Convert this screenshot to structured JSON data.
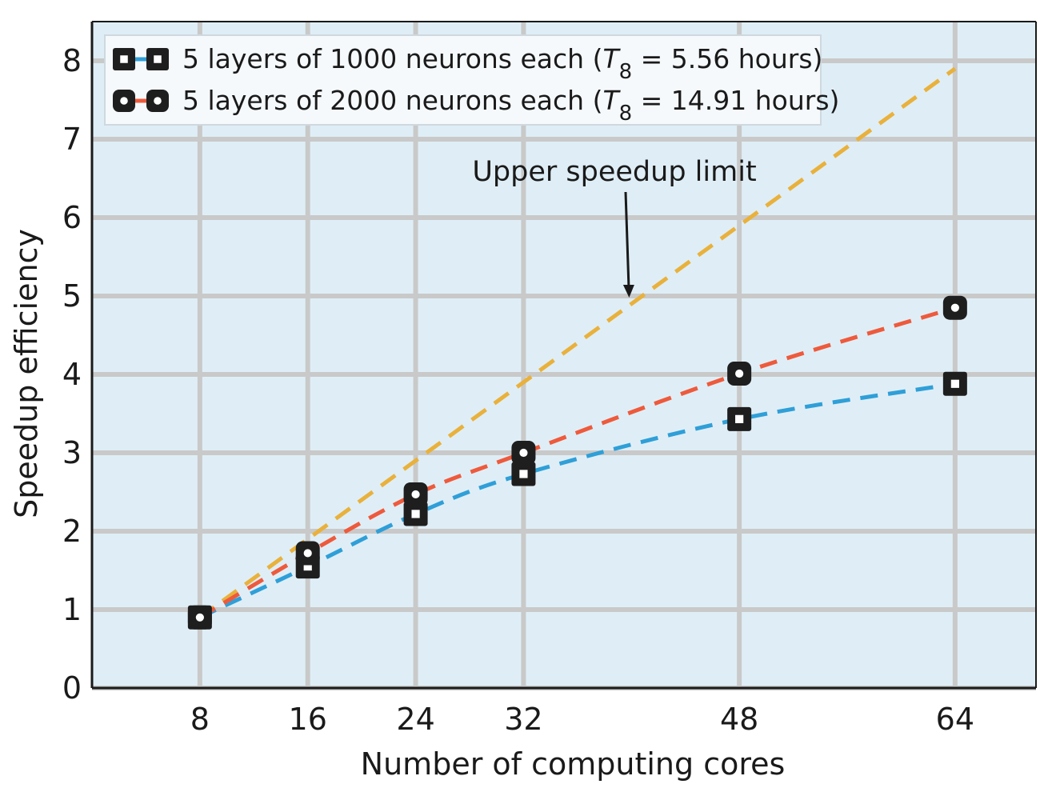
{
  "chart_data": {
    "type": "line",
    "xlabel": "Number of computing cores",
    "ylabel": "Speedup efficiency",
    "x_ticks": [
      "8",
      "16",
      "24",
      "32",
      "48",
      "64"
    ],
    "y_ticks": [
      "0",
      "1",
      "2",
      "3",
      "4",
      "5",
      "6",
      "7",
      "8"
    ],
    "xlim": [
      0,
      70
    ],
    "ylim": [
      0,
      8.5
    ],
    "grid": true,
    "legend_position": "top-left",
    "series": [
      {
        "name": "5 layers of 1000 neurons each (",
        "name_t": "T",
        "name_sub": "8",
        "name_value": " = 5.56 hours)",
        "marker": "square",
        "color": "#2f9fd8",
        "x": [
          8,
          16,
          24,
          32,
          48,
          64
        ],
        "y": [
          0.9,
          1.55,
          2.22,
          2.73,
          3.43,
          3.88
        ]
      },
      {
        "name": "5 layers of 2000 neurons each (",
        "name_t": "T",
        "name_sub": "8",
        "name_value": " = 14.91 hours)",
        "marker": "circle",
        "color": "#ee5a3c",
        "x": [
          8,
          16,
          24,
          32,
          48,
          64
        ],
        "y": [
          0.9,
          1.72,
          2.47,
          3.0,
          4.01,
          4.85
        ]
      }
    ],
    "reference_line": {
      "color": "#e9b13c",
      "x": [
        8,
        64
      ],
      "y": [
        0.9,
        7.9
      ]
    },
    "annotation": {
      "text": "Upper speedup limit",
      "arrow_to": [
        39.8,
        5.0
      ]
    },
    "colors": {
      "plot_background": "#dfeef6",
      "grid": "#c9c9c9",
      "marker_fill": "#1e1e1e"
    }
  }
}
